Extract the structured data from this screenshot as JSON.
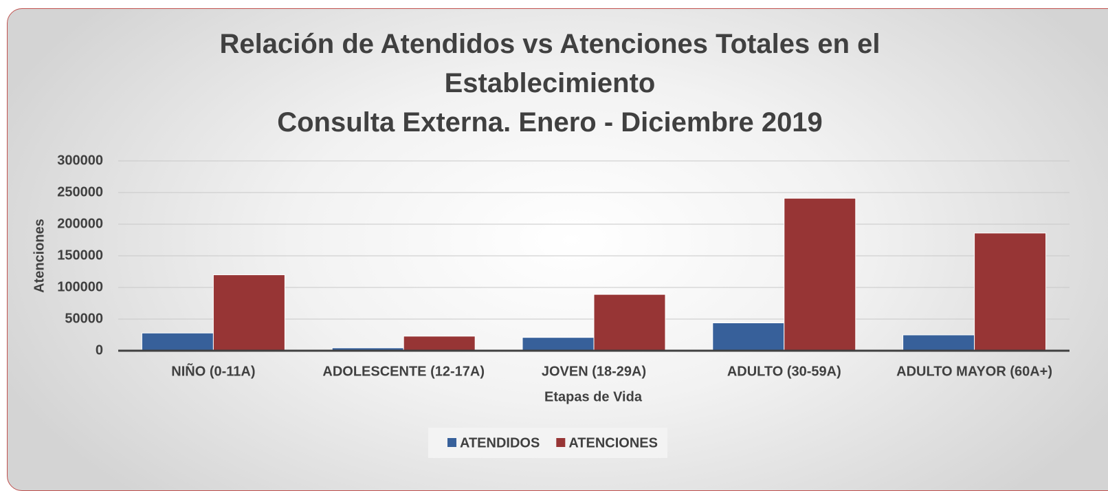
{
  "chart_data": {
    "type": "bar",
    "title": "Relación de Atendidos vs Atenciones Totales en el Establecimiento",
    "subtitle": "Consulta Externa. Enero - Diciembre 2019",
    "x_label": "Etapas de Vida",
    "y_label": "Atenciones",
    "categories": [
      "NIÑO (0-11A)",
      "ADOLESCENTE (12-17A)",
      "JOVEN (18-29A)",
      "ADULTO (30-59A)",
      "ADULTO MAYOR (60A+)"
    ],
    "series": [
      {
        "name": "ATENDIDOS",
        "color": "#37609a",
        "values": [
          28000,
          4500,
          21000,
          44000,
          25000
        ]
      },
      {
        "name": "ATENCIONES",
        "color": "#973535",
        "values": [
          120000,
          23000,
          89000,
          241000,
          186000
        ]
      }
    ],
    "ylim": [
      0,
      300000
    ],
    "yticks": [
      0,
      50000,
      100000,
      150000,
      200000,
      250000,
      300000
    ],
    "grid": true,
    "legend": "bottom"
  }
}
